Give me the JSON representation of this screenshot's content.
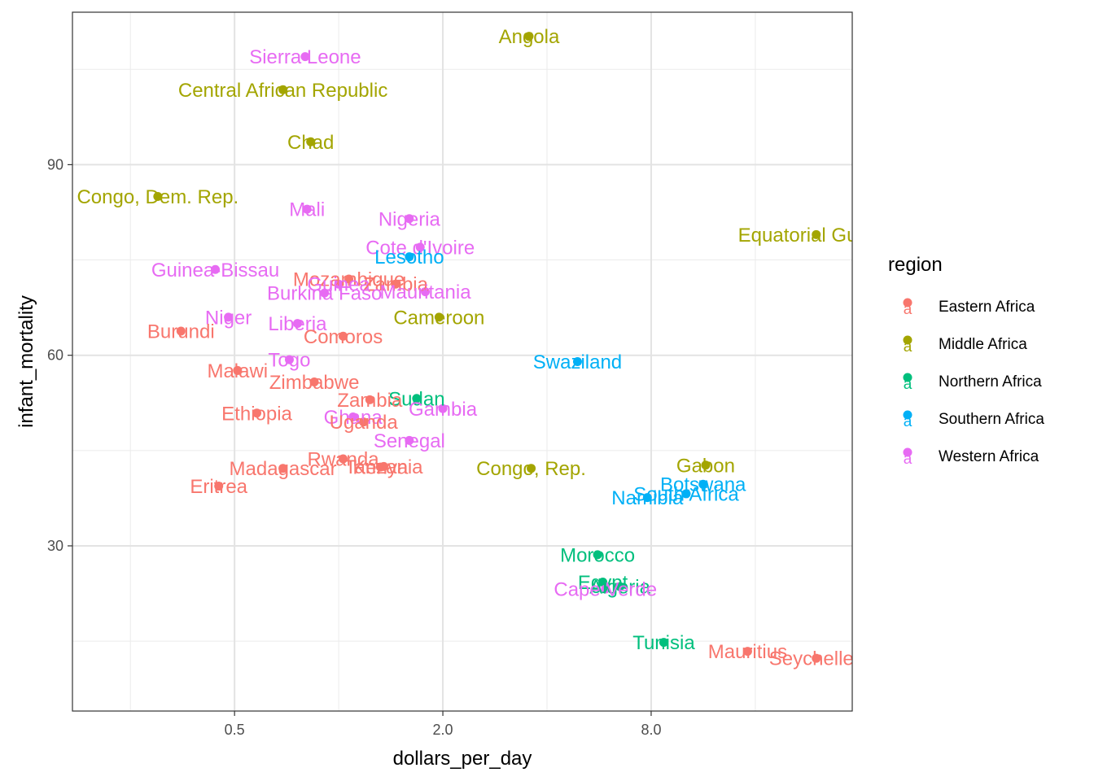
{
  "chart_data": {
    "type": "scatter",
    "xlabel": "dollars_per_day",
    "ylabel": "infant_mortality",
    "x_scale": "log2",
    "xlim": [
      0.17,
      30.5
    ],
    "ylim": [
      4.0,
      114.0
    ],
    "x_ticks": [
      0.5,
      2.0,
      8.0
    ],
    "x_tick_labels": [
      "0.5",
      "2.0",
      "8.0"
    ],
    "y_ticks": [
      30,
      60,
      90
    ],
    "y_tick_labels": [
      "30",
      "60",
      "90"
    ],
    "grid": true,
    "legend": {
      "title": "region",
      "position": "right",
      "entries": [
        {
          "name": "Eastern Africa",
          "color": "#F8766D"
        },
        {
          "name": "Middle Africa",
          "color": "#A3A500"
        },
        {
          "name": "Northern Africa",
          "color": "#00BF7D"
        },
        {
          "name": "Southern Africa",
          "color": "#00B0F6"
        },
        {
          "name": "Western Africa",
          "color": "#E76BF3"
        }
      ]
    },
    "points": [
      {
        "label": "Angola",
        "region": "Middle Africa",
        "x": 3.55,
        "y": 110.2
      },
      {
        "label": "Sierra Leone",
        "region": "Western Africa",
        "x": 0.8,
        "y": 107.0
      },
      {
        "label": "Central African Republic",
        "region": "Middle Africa",
        "x": 0.69,
        "y": 101.8
      },
      {
        "label": "Chad",
        "region": "Middle Africa",
        "x": 0.83,
        "y": 93.6
      },
      {
        "label": "Congo, Dem. Rep.",
        "region": "Middle Africa",
        "x": 0.3,
        "y": 85.0
      },
      {
        "label": "Mali",
        "region": "Western Africa",
        "x": 0.81,
        "y": 83.0
      },
      {
        "label": "Nigeria",
        "region": "Western Africa",
        "x": 1.6,
        "y": 81.5
      },
      {
        "label": "Equatorial Guinea",
        "region": "Middle Africa",
        "x": 24.0,
        "y": 79.0
      },
      {
        "label": "Cote d'Ivoire",
        "region": "Western Africa",
        "x": 1.72,
        "y": 77.0
      },
      {
        "label": "Lesotho",
        "region": "Southern Africa",
        "x": 1.6,
        "y": 75.5
      },
      {
        "label": "Guinea-Bissau",
        "region": "Western Africa",
        "x": 0.44,
        "y": 73.5
      },
      {
        "label": "Mozambique",
        "region": "Eastern Africa",
        "x": 1.07,
        "y": 72.0
      },
      {
        "label": "Guinea",
        "region": "Western Africa",
        "x": 1.0,
        "y": 71.2
      },
      {
        "label": "Zambia",
        "region": "Eastern Africa",
        "x": 1.46,
        "y": 71.2
      },
      {
        "label": "Mauritania",
        "region": "Western Africa",
        "x": 1.78,
        "y": 70.0
      },
      {
        "label": "Burkina Faso",
        "region": "Western Africa",
        "x": 0.91,
        "y": 69.8
      },
      {
        "label": "Cameroon",
        "region": "Middle Africa",
        "x": 1.95,
        "y": 66.0
      },
      {
        "label": "Niger",
        "region": "Western Africa",
        "x": 0.48,
        "y": 66.0
      },
      {
        "label": "Liberia",
        "region": "Western Africa",
        "x": 0.76,
        "y": 65.0
      },
      {
        "label": "Burundi",
        "region": "Eastern Africa",
        "x": 0.35,
        "y": 63.8
      },
      {
        "label": "Comoros",
        "region": "Eastern Africa",
        "x": 1.03,
        "y": 63.0
      },
      {
        "label": "Togo",
        "region": "Western Africa",
        "x": 0.72,
        "y": 59.3
      },
      {
        "label": "Swaziland",
        "region": "Southern Africa",
        "x": 4.9,
        "y": 59.0
      },
      {
        "label": "Malawi",
        "region": "Eastern Africa",
        "x": 0.51,
        "y": 57.6
      },
      {
        "label": "Zimbabwe",
        "region": "Eastern Africa",
        "x": 0.85,
        "y": 55.8
      },
      {
        "label": "Sudan",
        "region": "Northern Africa",
        "x": 1.68,
        "y": 53.2
      },
      {
        "label": "Zambia",
        "region": "Eastern Africa",
        "x": 1.23,
        "y": 53.0
      },
      {
        "label": "Gambia",
        "region": "Western Africa",
        "x": 2.0,
        "y": 51.6
      },
      {
        "label": "Ethiopia",
        "region": "Eastern Africa",
        "x": 0.58,
        "y": 50.9
      },
      {
        "label": "Ghana",
        "region": "Western Africa",
        "x": 1.1,
        "y": 50.3
      },
      {
        "label": "Uganda",
        "region": "Eastern Africa",
        "x": 1.18,
        "y": 49.5
      },
      {
        "label": "Senegal",
        "region": "Western Africa",
        "x": 1.6,
        "y": 46.6
      },
      {
        "label": "Rwanda",
        "region": "Eastern Africa",
        "x": 1.03,
        "y": 43.7
      },
      {
        "label": "Tanzania",
        "region": "Eastern Africa",
        "x": 1.35,
        "y": 42.5
      },
      {
        "label": "Kenya",
        "region": "Eastern Africa",
        "x": 1.32,
        "y": 42.4
      },
      {
        "label": "Congo, Rep.",
        "region": "Middle Africa",
        "x": 3.6,
        "y": 42.2
      },
      {
        "label": "Madagascar",
        "region": "Eastern Africa",
        "x": 0.69,
        "y": 42.2
      },
      {
        "label": "Eritrea",
        "region": "Eastern Africa",
        "x": 0.45,
        "y": 39.4
      },
      {
        "label": "Gabon",
        "region": "Middle Africa",
        "x": 11.5,
        "y": 42.7
      },
      {
        "label": "Botswana",
        "region": "Southern Africa",
        "x": 11.3,
        "y": 39.7
      },
      {
        "label": "South Africa",
        "region": "Southern Africa",
        "x": 10.1,
        "y": 38.2
      },
      {
        "label": "Namibia",
        "region": "Southern Africa",
        "x": 7.8,
        "y": 37.6
      },
      {
        "label": "Morocco",
        "region": "Northern Africa",
        "x": 5.6,
        "y": 28.6
      },
      {
        "label": "Egypt",
        "region": "Northern Africa",
        "x": 5.8,
        "y": 24.3
      },
      {
        "label": "Algeria",
        "region": "Northern Africa",
        "x": 6.5,
        "y": 23.6
      },
      {
        "label": "Cape Verde",
        "region": "Western Africa",
        "x": 5.9,
        "y": 23.2
      },
      {
        "label": "Tunisia",
        "region": "Northern Africa",
        "x": 8.7,
        "y": 14.8
      },
      {
        "label": "Mauritius",
        "region": "Eastern Africa",
        "x": 15.2,
        "y": 13.4
      },
      {
        "label": "Seychelles",
        "region": "Eastern Africa",
        "x": 24.0,
        "y": 12.3
      }
    ]
  }
}
